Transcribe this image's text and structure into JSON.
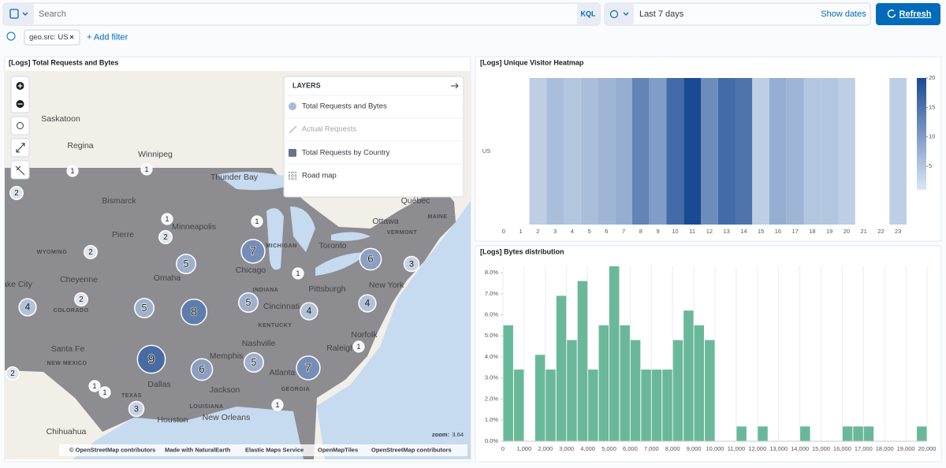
{
  "toolbar": {
    "search_placeholder": "Search",
    "query_language": "KQL",
    "time_range": "Last 7 days",
    "show_dates": "Show dates",
    "refresh": "Refresh"
  },
  "filters": {
    "items": [
      "geo.src: US"
    ],
    "add": "+ Add filter"
  },
  "map": {
    "title": "[Logs] Total Requests and Bytes",
    "layers_title": "LAYERS",
    "layers": [
      "Total Requests and Bytes",
      "Actual Requests",
      "Total Requests by Country",
      "Road map"
    ],
    "places": [
      "Saskatoon",
      "Regina",
      "Winnipeg",
      "Thunder Bay",
      "Bismarck",
      "Pierre",
      "Minneapolis",
      "WYOMING",
      "Cheyenne",
      "Omaha",
      "ake City",
      "COLORADO",
      "Chicago",
      "MICHIGAN",
      "INDIANA",
      "Cincinnati",
      "KENTUCKY",
      "Nashville",
      "Memphis",
      "Pittsburgh",
      "Toronto",
      "Ottawa",
      "Québec",
      "MAINE",
      "VERMONT",
      "New York",
      "Norfolk",
      "Raleigh",
      "Atlanta",
      "GEORGIA",
      "Santa Fe",
      "NEW MEXICO",
      "Chihuahua",
      "Dallas",
      "TEXAS",
      "Jackson",
      "LOUISIANA",
      "Houston",
      "New Orleans"
    ],
    "clusters": [
      1,
      1,
      2,
      1,
      2,
      1,
      2,
      5,
      7,
      6,
      3,
      1,
      4,
      2,
      5,
      8,
      5,
      4,
      4,
      1,
      9,
      6,
      5,
      7,
      2,
      1,
      1,
      3,
      1
    ],
    "zoom_label": "zoom:",
    "zoom": 3.64,
    "attribution": [
      "© OpenStreetMap contributors",
      "Made with NaturalEarth",
      "Elastic Maps Service",
      "OpenMapTiles",
      "OpenStreetMap contributors"
    ]
  },
  "chart_data": [
    {
      "type": "heatmap",
      "title": "[Logs] Unique Visitor Heatmap",
      "categories": [
        "0",
        "1",
        "2",
        "3",
        "4",
        "5",
        "6",
        "7",
        "8",
        "9",
        "10",
        "11",
        "12",
        "13",
        "14",
        "15",
        "16",
        "17",
        "18",
        "19",
        "20",
        "21",
        "22",
        "23"
      ],
      "series": [
        {
          "name": "US",
          "values": [
            null,
            null,
            4,
            6,
            5,
            6,
            7,
            8,
            13,
            10,
            16,
            20,
            12,
            16,
            15,
            4,
            8,
            7,
            5,
            5,
            4,
            null,
            null,
            4
          ]
        }
      ],
      "clim": [
        1,
        20
      ],
      "legend_ticks": [
        5,
        10,
        15,
        20
      ],
      "color_low": "#dbe7f4",
      "color_high": "#1b4a94",
      "legend": "right"
    },
    {
      "type": "histogram",
      "title": "[Logs] Bytes distribution",
      "color": "#6ab89a",
      "bins": [
        0,
        500,
        1000,
        1500,
        2000,
        2500,
        3000,
        3500,
        4000,
        4500,
        5000,
        5500,
        6000,
        6500,
        7000,
        7500,
        8000,
        8500,
        9000,
        9500,
        10000,
        10500,
        11000,
        11500,
        12000,
        12500,
        13000,
        13500,
        14000,
        14500,
        15000,
        15500,
        16000,
        16500,
        17000,
        17500,
        18000,
        18500,
        19000,
        19500,
        20000
      ],
      "values": [
        5.5,
        3.4,
        0,
        4.1,
        3.4,
        6.9,
        4.8,
        7.6,
        3.4,
        5.5,
        8.3,
        5.5,
        4.8,
        3.4,
        3.4,
        3.4,
        4.8,
        6.2,
        5.5,
        4.8,
        0,
        0,
        0.7,
        0,
        0.7,
        0,
        0,
        0,
        0.7,
        0,
        0,
        0,
        0.7,
        0.7,
        0.7,
        0,
        0,
        0,
        0,
        0.7
      ],
      "xlim": [
        0,
        20000
      ],
      "ylim": [
        0,
        8.3
      ],
      "xticks": [
        0,
        {
          "value": 1000,
          "label": "1,000"
        },
        {
          "value": 2000,
          "label": "2,000"
        },
        {
          "value": 3000,
          "label": "3,000"
        },
        {
          "value": 4000,
          "label": "4,000"
        },
        {
          "value": 5000,
          "label": "5,000"
        },
        {
          "value": 6000,
          "label": "6,000"
        },
        {
          "value": 7000,
          "label": "7,000"
        },
        {
          "value": 8000,
          "label": "8,000"
        },
        {
          "value": 9000,
          "label": "9,000"
        },
        {
          "value": 10000,
          "label": "10,000"
        },
        {
          "value": 11000,
          "label": "11,000"
        },
        {
          "value": 12000,
          "label": "12,000"
        },
        {
          "value": 13000,
          "label": "13,000"
        },
        {
          "value": 14000,
          "label": "14,000"
        },
        {
          "value": 15000,
          "label": "15,000"
        },
        {
          "value": 16000,
          "label": "16,000"
        },
        {
          "value": 17000,
          "label": "17,000"
        },
        {
          "value": 18000,
          "label": "18,000"
        },
        {
          "value": 19000,
          "label": "19,000"
        },
        {
          "value": 20000,
          "label": "20,000"
        }
      ],
      "yticks": [
        {
          "value": 0,
          "label": "0.0%"
        },
        {
          "value": 1,
          "label": "1.0%"
        },
        {
          "value": 2,
          "label": "2.0%"
        },
        {
          "value": 3,
          "label": "3.0%"
        },
        {
          "value": 4,
          "label": "4.0%"
        },
        {
          "value": 5,
          "label": "5.0%"
        },
        {
          "value": 6,
          "label": "6.0%"
        },
        {
          "value": 7,
          "label": "7.0%"
        },
        {
          "value": 8,
          "label": "8.0%"
        }
      ],
      "grid": "x"
    }
  ]
}
